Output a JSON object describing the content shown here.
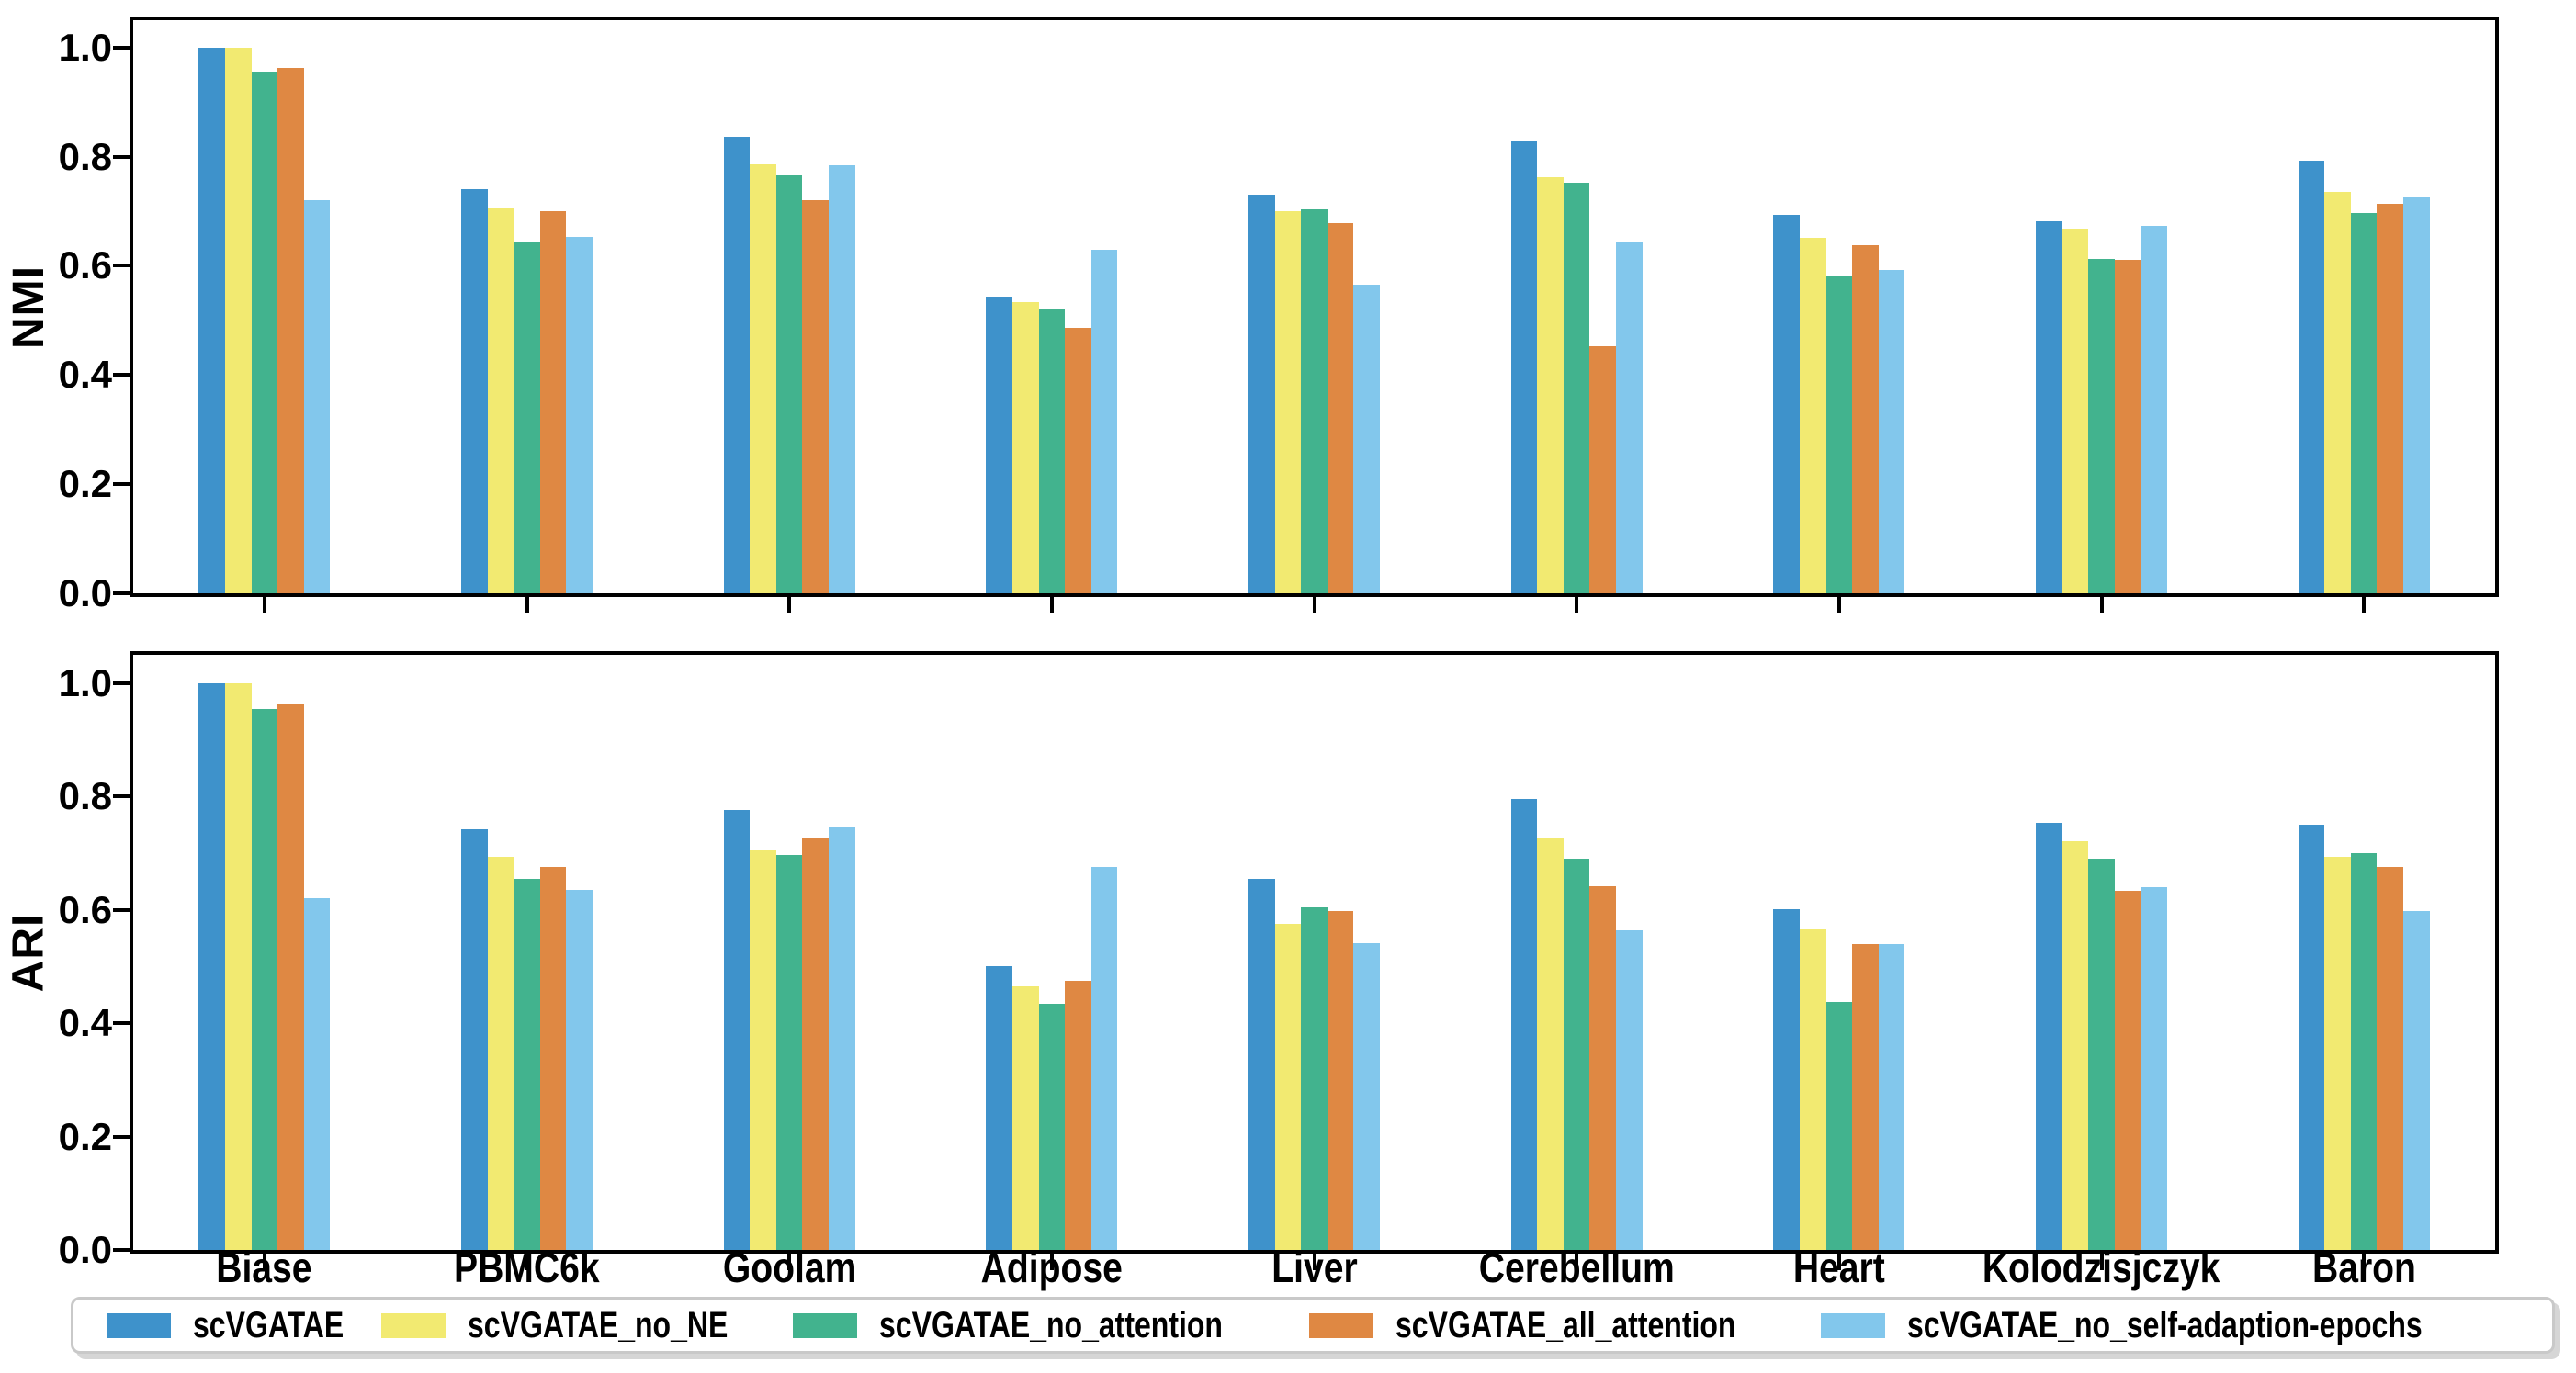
{
  "chart_data": [
    {
      "type": "bar",
      "ylabel": "NMI",
      "categories": [
        "Biase",
        "PBMC6k",
        "Goolam",
        "Adipose",
        "Liver",
        "Cerebellum",
        "Heart",
        "Kolodzisjczyk",
        "Baron"
      ],
      "series": [
        {
          "name": "scVGATAE",
          "color": "#3E92CB",
          "values": [
            1.0,
            0.74,
            0.836,
            0.543,
            0.73,
            0.828,
            0.693,
            0.682,
            0.792
          ]
        },
        {
          "name": "scVGATAE_no_NE",
          "color": "#F2EA71",
          "values": [
            1.0,
            0.705,
            0.786,
            0.533,
            0.7,
            0.763,
            0.652,
            0.668,
            0.736
          ]
        },
        {
          "name": "scVGATAE_no_attention",
          "color": "#42B38E",
          "values": [
            0.955,
            0.642,
            0.765,
            0.522,
            0.704,
            0.753,
            0.581,
            0.613,
            0.696
          ]
        },
        {
          "name": "scVGATAE_all_attention",
          "color": "#DF8843",
          "values": [
            0.963,
            0.7,
            0.72,
            0.486,
            0.678,
            0.453,
            0.638,
            0.611,
            0.713
          ]
        },
        {
          "name": "scVGATAE_no_self-adaption-epochs",
          "color": "#82C7EC",
          "values": [
            0.721,
            0.653,
            0.785,
            0.63,
            0.565,
            0.644,
            0.592,
            0.673,
            0.727
          ]
        }
      ],
      "ylim": [
        0,
        1.05
      ],
      "yticks": [
        "0.0",
        "0.2",
        "0.4",
        "0.6",
        "0.8",
        "1.0"
      ],
      "grid": false,
      "x_tick_labels_shown": false
    },
    {
      "type": "bar",
      "ylabel": "ARI",
      "categories": [
        "Biase",
        "PBMC6k",
        "Goolam",
        "Adipose",
        "Liver",
        "Cerebellum",
        "Heart",
        "Kolodzisjczyk",
        "Baron"
      ],
      "series": [
        {
          "name": "scVGATAE",
          "color": "#3E92CB",
          "values": [
            1.0,
            0.742,
            0.776,
            0.5,
            0.654,
            0.795,
            0.601,
            0.754,
            0.751
          ]
        },
        {
          "name": "scVGATAE_no_NE",
          "color": "#F2EA71",
          "values": [
            1.0,
            0.694,
            0.705,
            0.465,
            0.576,
            0.728,
            0.566,
            0.721,
            0.694
          ]
        },
        {
          "name": "scVGATAE_no_attention",
          "color": "#42B38E",
          "values": [
            0.954,
            0.655,
            0.697,
            0.435,
            0.604,
            0.69,
            0.438,
            0.69,
            0.7
          ]
        },
        {
          "name": "scVGATAE_all_attention",
          "color": "#DF8843",
          "values": [
            0.962,
            0.676,
            0.726,
            0.474,
            0.598,
            0.642,
            0.54,
            0.634,
            0.676
          ]
        },
        {
          "name": "scVGATAE_no_self-adaption-epochs",
          "color": "#82C7EC",
          "values": [
            0.62,
            0.635,
            0.746,
            0.675,
            0.541,
            0.564,
            0.539,
            0.64,
            0.598
          ]
        }
      ],
      "ylim": [
        0,
        1.05
      ],
      "yticks": [
        "0.0",
        "0.2",
        "0.4",
        "0.6",
        "0.8",
        "1.0"
      ],
      "grid": false,
      "x_tick_labels_shown": true
    }
  ],
  "legend": {
    "items": [
      {
        "label": "scVGATAE",
        "color": "#3E92CB"
      },
      {
        "label": "scVGATAE_no_NE",
        "color": "#F2EA71"
      },
      {
        "label": "scVGATAE_no_attention",
        "color": "#42B38E"
      },
      {
        "label": "scVGATAE_all_attention",
        "color": "#DF8843"
      },
      {
        "label": "scVGATAE_no_self-adaption-epochs",
        "color": "#82C7EC"
      }
    ]
  }
}
